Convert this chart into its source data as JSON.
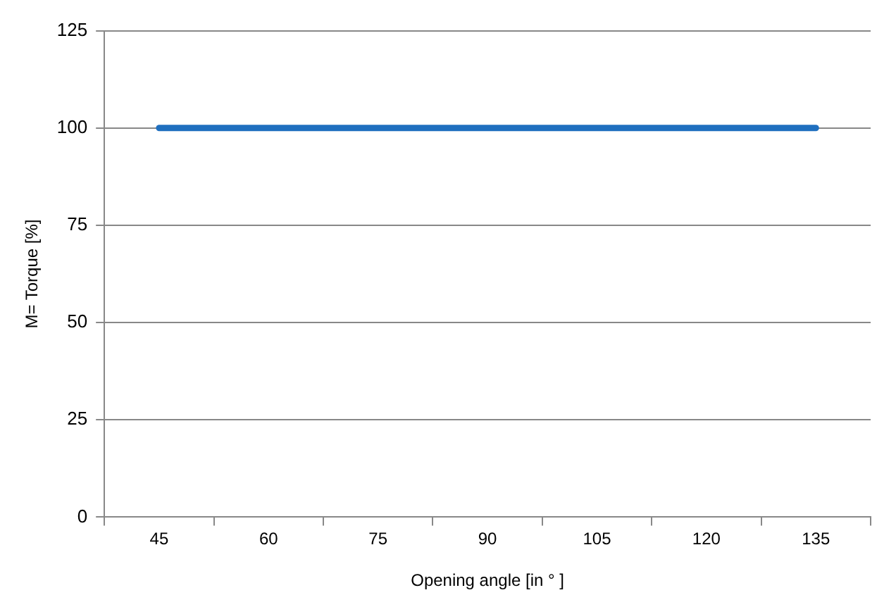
{
  "chart_data": {
    "type": "line",
    "xlabel": "Opening angle [in ° ]",
    "ylabel": "M= Torque [%]",
    "categories": [
      "45",
      "60",
      "75",
      "90",
      "105",
      "120",
      "135"
    ],
    "series": [
      {
        "color": "#1f6fbf",
        "values": [
          100,
          100,
          100,
          100,
          100,
          100,
          100
        ]
      }
    ],
    "ylim": [
      0,
      125
    ],
    "yticks": [
      0,
      25,
      50,
      75,
      100,
      125
    ],
    "grid": "y",
    "legend": false,
    "marker": "none",
    "line_style": "solid"
  }
}
